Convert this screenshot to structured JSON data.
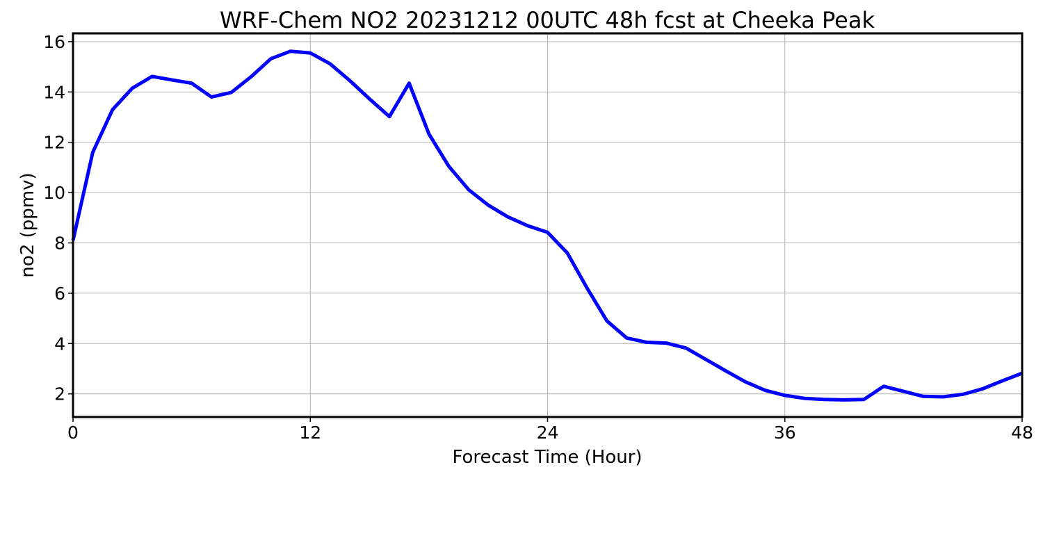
{
  "chart_data": {
    "type": "line",
    "title": "WRF-Chem NO2  20231212 00UTC 48h fcst at Cheeka Peak",
    "xlabel": "Forecast Time (Hour)",
    "ylabel": "no2  (ppmv)",
    "xlim": [
      0,
      48
    ],
    "ylim": [
      1.08,
      16.33
    ],
    "xticks": [
      0,
      12,
      24,
      36,
      48
    ],
    "yticks": [
      2,
      4,
      6,
      8,
      10,
      12,
      14,
      16
    ],
    "grid": true,
    "series": [
      {
        "color": "#0000ff",
        "x": [
          0,
          1,
          2,
          3,
          4,
          5,
          6,
          7,
          8,
          9,
          10,
          11,
          12,
          13,
          14,
          15,
          16,
          17,
          18,
          19,
          20,
          21,
          22,
          23,
          24,
          25,
          26,
          27,
          28,
          29,
          30,
          31,
          32,
          33,
          34,
          35,
          36,
          37,
          38,
          39,
          40,
          41,
          42,
          43,
          44,
          45,
          46,
          47,
          48
        ],
        "y": [
          8.1,
          11.6,
          13.3,
          14.15,
          14.62,
          14.48,
          14.35,
          13.8,
          13.98,
          14.6,
          15.32,
          15.62,
          15.55,
          15.12,
          14.45,
          13.72,
          13.02,
          14.35,
          12.33,
          11.05,
          10.12,
          9.5,
          9.03,
          8.68,
          8.42,
          7.6,
          6.2,
          4.9,
          4.22,
          4.05,
          4.02,
          3.82,
          3.37,
          2.92,
          2.48,
          2.14,
          1.94,
          1.82,
          1.78,
          1.76,
          1.78,
          2.3,
          2.1,
          1.9,
          1.88,
          1.98,
          2.2,
          2.52,
          2.82
        ]
      }
    ]
  }
}
